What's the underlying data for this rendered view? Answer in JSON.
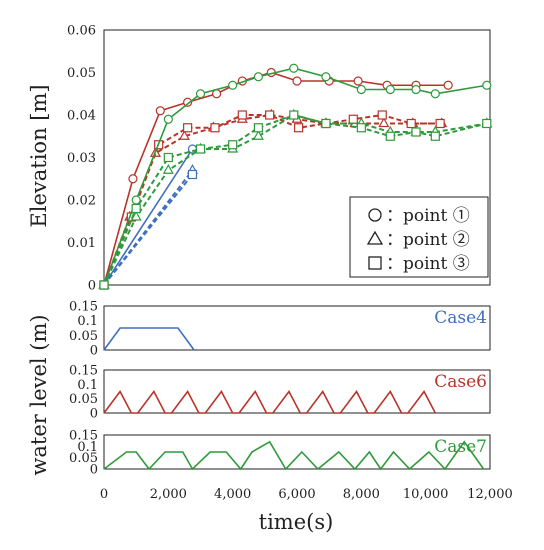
{
  "colors": {
    "case4": "#3f6fbf",
    "case6": "#b8342a",
    "case7": "#2f9a3c",
    "axis": "#222222"
  },
  "legend": [
    {
      "symbol": "circle",
      "label": "：point ①"
    },
    {
      "symbol": "triangle",
      "label": "：point ②"
    },
    {
      "symbol": "square",
      "label": "：point ③"
    }
  ],
  "chart_data": [
    {
      "type": "line",
      "ylabel": "Elevation [m]",
      "xlim": [
        0,
        12000
      ],
      "ylim": [
        0,
        0.06
      ],
      "yticks": [
        "0",
        "0.01",
        "0.02",
        "0.03",
        "0.04",
        "0.05",
        "0.06"
      ],
      "series": [
        {
          "case": "case4",
          "point": "point1",
          "dash": false,
          "marker": "circle",
          "x": [
            0,
            2750
          ],
          "y": [
            0,
            0.032
          ]
        },
        {
          "case": "case4",
          "point": "point2",
          "dash": true,
          "marker": "triangle",
          "x": [
            0,
            2750
          ],
          "y": [
            0,
            0.027
          ]
        },
        {
          "case": "case4",
          "point": "point3",
          "dash": true,
          "marker": "square",
          "x": [
            0,
            2750
          ],
          "y": [
            0,
            0.026
          ]
        },
        {
          "case": "case6",
          "point": "point1",
          "dash": false,
          "marker": "circle",
          "x": [
            0,
            900,
            1750,
            2600,
            3500,
            4300,
            5200,
            6000,
            7000,
            7900,
            8800,
            9700,
            10700
          ],
          "y": [
            0,
            0.025,
            0.041,
            0.043,
            0.045,
            0.048,
            0.05,
            0.048,
            0.048,
            0.048,
            0.047,
            0.047,
            0.047
          ]
        },
        {
          "case": "case6",
          "point": "point2",
          "dash": true,
          "marker": "triangle",
          "x": [
            0,
            800,
            1600,
            2500,
            3400,
            4300,
            5200,
            6000,
            6900,
            7800,
            8700,
            9600,
            10500
          ],
          "y": [
            0,
            0.016,
            0.031,
            0.035,
            0.037,
            0.039,
            0.04,
            0.039,
            0.038,
            0.038,
            0.038,
            0.038,
            0.038
          ]
        },
        {
          "case": "case6",
          "point": "point3",
          "dash": true,
          "marker": "square",
          "x": [
            0,
            850,
            1700,
            2600,
            3450,
            4300,
            5150,
            6050,
            6900,
            7750,
            8650,
            9550,
            10450
          ],
          "y": [
            0,
            0.016,
            0.033,
            0.037,
            0.037,
            0.04,
            0.04,
            0.037,
            0.038,
            0.039,
            0.04,
            0.038,
            0.038
          ]
        },
        {
          "case": "case7",
          "point": "point1",
          "dash": false,
          "marker": "circle",
          "x": [
            0,
            1000,
            2000,
            3000,
            4000,
            4800,
            5900,
            6900,
            8000,
            8900,
            9700,
            10300,
            11900
          ],
          "y": [
            0,
            0.02,
            0.039,
            0.045,
            0.047,
            0.049,
            0.051,
            0.049,
            0.046,
            0.046,
            0.046,
            0.045,
            0.047
          ]
        },
        {
          "case": "case7",
          "point": "point2",
          "dash": true,
          "marker": "triangle",
          "x": [
            0,
            1000,
            2000,
            3000,
            4000,
            4800,
            5900,
            6900,
            8000,
            8900,
            9700,
            10300,
            11900
          ],
          "y": [
            0,
            0.016,
            0.027,
            0.032,
            0.032,
            0.035,
            0.04,
            0.038,
            0.038,
            0.036,
            0.036,
            0.036,
            0.038
          ]
        },
        {
          "case": "case7",
          "point": "point3",
          "dash": true,
          "marker": "square",
          "x": [
            0,
            1000,
            2000,
            3000,
            4000,
            4800,
            5900,
            6900,
            8000,
            8900,
            9700,
            10300,
            11900
          ],
          "y": [
            0,
            0.018,
            0.03,
            0.032,
            0.033,
            0.037,
            0.04,
            0.038,
            0.037,
            0.035,
            0.036,
            0.035,
            0.038
          ]
        }
      ]
    },
    {
      "type": "line",
      "ylabel": "water level (m)",
      "xlabel": "time(s)",
      "xlim": [
        0,
        12000
      ],
      "xticks": [
        "0",
        "2,000",
        "4,000",
        "6,000",
        "8,000",
        "10,000",
        "12,000"
      ],
      "ylim": [
        0,
        0.15
      ],
      "yticks": [
        "0",
        "0.05",
        "0.1",
        "0.15"
      ],
      "panels": [
        {
          "label": "Case4",
          "color_key": "case4",
          "x": [
            0,
            500,
            2300,
            2800
          ],
          "y": [
            0,
            0.075,
            0.075,
            0
          ]
        },
        {
          "label": "Case6",
          "color_key": "case6",
          "x": [
            0,
            500,
            850,
            1050,
            1550,
            1900,
            2100,
            2600,
            2950,
            3150,
            3650,
            4000,
            4200,
            4700,
            5050,
            5250,
            5750,
            6100,
            6300,
            6800,
            7150,
            7350,
            7850,
            8200,
            8400,
            8900,
            9250,
            9450,
            9950,
            10300
          ],
          "y": [
            0,
            0.075,
            0,
            0,
            0.075,
            0,
            0,
            0.075,
            0,
            0,
            0.075,
            0,
            0,
            0.075,
            0,
            0,
            0.075,
            0,
            0,
            0.075,
            0,
            0,
            0.075,
            0,
            0,
            0.075,
            0,
            0,
            0.075,
            0
          ]
        },
        {
          "label": "Case7",
          "color_key": "case7",
          "x": [
            0,
            700,
            1000,
            1400,
            1900,
            2450,
            2750,
            3300,
            3800,
            4250,
            4600,
            5150,
            5650,
            6150,
            6650,
            7300,
            7800,
            8250,
            8600,
            9000,
            9500,
            10100,
            10600,
            11200,
            11800
          ],
          "y": [
            0,
            0.075,
            0.075,
            0,
            0.075,
            0.075,
            0,
            0.075,
            0.075,
            0,
            0.075,
            0.12,
            0,
            0.075,
            0,
            0.075,
            0,
            0.075,
            0,
            0.075,
            0,
            0.075,
            0,
            0.12,
            0
          ]
        }
      ]
    }
  ]
}
